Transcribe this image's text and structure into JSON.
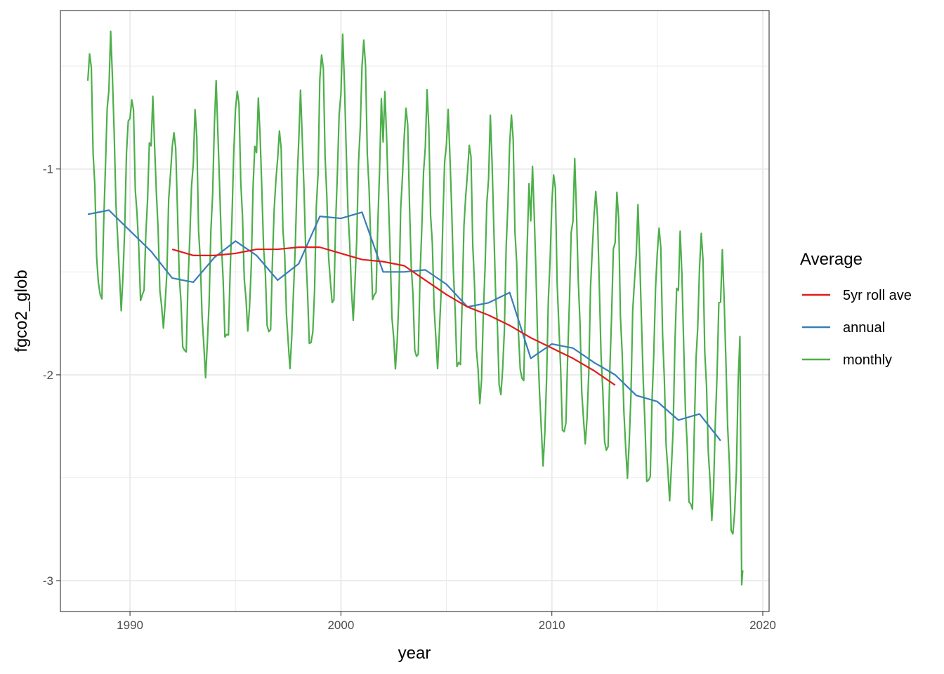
{
  "chart_data": {
    "type": "line",
    "title": "",
    "xlabel": "year",
    "ylabel": "fgco2_glob",
    "xlim": [
      1986.7,
      2020.3
    ],
    "ylim": [
      -3.15,
      -0.23
    ],
    "x_ticks": [
      1990,
      2000,
      2010,
      2020
    ],
    "x_tick_labels": [
      "1990",
      "2000",
      "2010",
      "2020"
    ],
    "x_minor": [
      1995,
      2005,
      2015
    ],
    "y_ticks": [
      -1,
      -2,
      -3
    ],
    "y_tick_labels": [
      "-1",
      "-2",
      "-3"
    ],
    "y_minor": [
      -0.5,
      -1.5,
      -2.5
    ],
    "grid": true,
    "legend": {
      "title": "Average",
      "position": "right",
      "entries": [
        {
          "name": "5yr roll ave",
          "color": "#E41A1C"
        },
        {
          "name": "annual",
          "color": "#377EB8"
        },
        {
          "name": "monthly",
          "color": "#4DAF4A"
        }
      ]
    },
    "series": [
      {
        "name": "monthly",
        "color": "#4DAF4A",
        "annual_pattern": [
          0.8,
          1.05,
          0.85,
          0.4,
          0.1,
          -0.2,
          -0.45,
          -0.55,
          -0.45,
          -0.1,
          0.3,
          0.6
        ],
        "scale": [
          0.78,
          0.78,
          0.62,
          0.66,
          0.72,
          0.78,
          0.78,
          0.75,
          0.7,
          0.7,
          0.76,
          0.78,
          0.8,
          0.82,
          0.82,
          0.8,
          0.8,
          0.8,
          0.8,
          0.82,
          0.84,
          0.86,
          0.82,
          0.82,
          0.82,
          0.84,
          0.84,
          0.85,
          0.85,
          0.85,
          0.86
        ],
        "noise": [
          0.05,
          -0.08,
          0.1,
          -0.03,
          0.12,
          -0.1,
          0.04,
          0.08,
          -0.12,
          0.06,
          -0.02,
          0.09,
          -0.07,
          0.11,
          -0.05,
          0.03,
          -0.09,
          0.07,
          0.02,
          -0.11,
          0.1,
          -0.04,
          0.06,
          -0.08,
          0.12,
          -0.06,
          0.01,
          0.09,
          -0.1,
          0.05,
          -0.03
        ]
      },
      {
        "name": "annual",
        "color": "#377EB8",
        "x": [
          1988,
          1989,
          1990,
          1991,
          1992,
          1993,
          1994,
          1995,
          1996,
          1997,
          1998,
          1999,
          2000,
          2001,
          2002,
          2003,
          2004,
          2005,
          2006,
          2007,
          2008,
          2009,
          2010,
          2011,
          2012,
          2013,
          2014,
          2015,
          2016,
          2017,
          2018
        ],
        "values": [
          -1.22,
          -1.2,
          -1.3,
          -1.4,
          -1.53,
          -1.55,
          -1.43,
          -1.35,
          -1.42,
          -1.54,
          -1.46,
          -1.23,
          -1.24,
          -1.21,
          -1.5,
          -1.5,
          -1.49,
          -1.56,
          -1.67,
          -1.65,
          -1.6,
          -1.92,
          -1.85,
          -1.87,
          -1.94,
          -2.0,
          -2.1,
          -2.13,
          -2.22,
          -2.19,
          -2.32
        ]
      },
      {
        "name": "5yr roll ave",
        "color": "#E41A1C",
        "x": [
          1992,
          1993,
          1994,
          1995,
          1996,
          1997,
          1998,
          1999,
          2000,
          2001,
          2002,
          2003,
          2004,
          2005,
          2006,
          2007,
          2008,
          2009,
          2010,
          2011,
          2012,
          2013
        ],
        "values": [
          -1.39,
          -1.42,
          -1.42,
          -1.41,
          -1.39,
          -1.39,
          -1.38,
          -1.38,
          -1.41,
          -1.44,
          -1.45,
          -1.47,
          -1.54,
          -1.61,
          -1.67,
          -1.71,
          -1.76,
          -1.82,
          -1.87,
          -1.92,
          -1.98,
          -2.05
        ]
      }
    ]
  }
}
